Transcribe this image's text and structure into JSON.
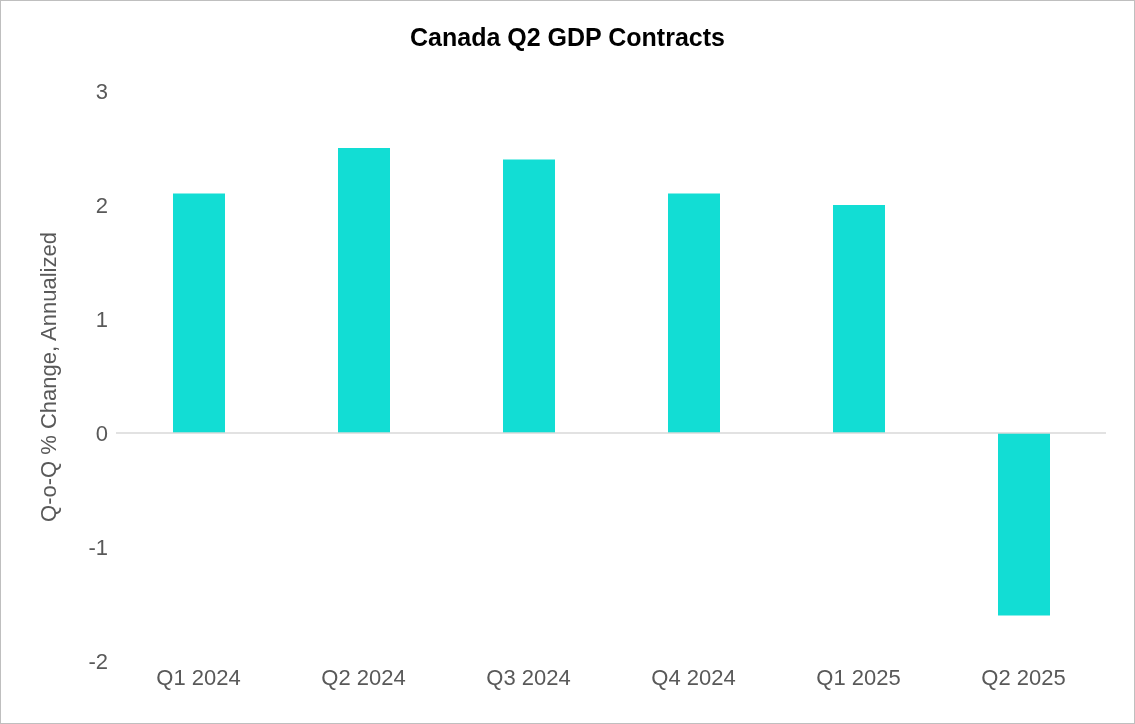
{
  "chart_data": {
    "type": "bar",
    "title": "Canada Q2 GDP Contracts",
    "ylabel": "Q-o-Q % Change, Annualized",
    "categories": [
      "Q1 2024",
      "Q2 2024",
      "Q3 2024",
      "Q4 2024",
      "Q1 2025",
      "Q2 2025"
    ],
    "values": [
      2.1,
      2.5,
      2.4,
      2.1,
      2.0,
      -1.6
    ],
    "color": "#12ddd4",
    "ylim": [
      -2,
      3
    ],
    "yticks": [
      -2,
      -1,
      0,
      1,
      2,
      3
    ]
  }
}
